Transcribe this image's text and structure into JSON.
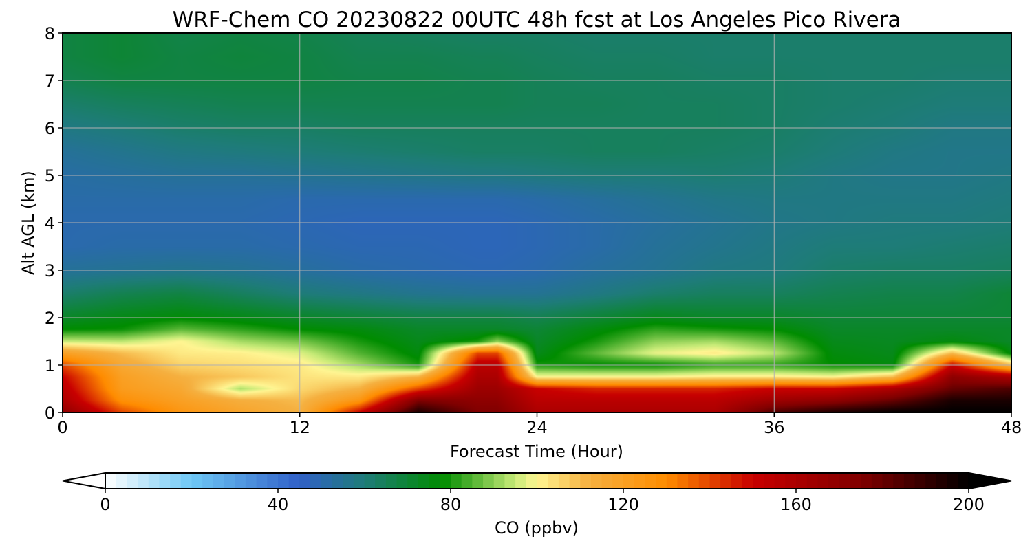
{
  "chart_data": {
    "type": "heatmap",
    "title": "WRF-Chem CO  20230822 00UTC 48h fcst at Los Angeles Pico Rivera",
    "xlabel": "Forecast Time (Hour)",
    "ylabel": "Alt AGL (km)",
    "xlim": [
      0,
      48
    ],
    "ylim": [
      0,
      8
    ],
    "x_ticks": [
      0,
      12,
      24,
      36,
      48
    ],
    "y_ticks": [
      0,
      1,
      2,
      3,
      4,
      5,
      6,
      7,
      8
    ],
    "grid": true,
    "x": [
      0,
      3,
      6,
      9,
      12,
      15,
      18,
      21,
      22,
      24,
      27,
      30,
      33,
      36,
      39,
      42,
      45,
      48
    ],
    "y": [
      0,
      0.25,
      0.5,
      0.75,
      1,
      1.25,
      1.5,
      1.75,
      2,
      2.5,
      3,
      3.5,
      4,
      4.5,
      5,
      5.5,
      6,
      6.5,
      7,
      7.5,
      8
    ],
    "z_co_ppbv": [
      [
        170,
        140,
        125,
        118,
        112,
        150,
        195,
        175,
        175,
        160,
        160,
        160,
        160,
        185,
        195,
        200,
        200,
        200
      ],
      [
        160,
        128,
        120,
        113,
        110,
        125,
        175,
        170,
        170,
        155,
        155,
        155,
        155,
        165,
        170,
        180,
        195,
        195
      ],
      [
        155,
        122,
        116,
        93,
        105,
        112,
        140,
        165,
        165,
        150,
        145,
        145,
        145,
        150,
        150,
        160,
        180,
        185
      ],
      [
        150,
        120,
        112,
        108,
        103,
        102,
        112,
        160,
        160,
        100,
        100,
        100,
        102,
        102,
        100,
        110,
        170,
        160
      ],
      [
        140,
        116,
        106,
        104,
        102,
        92,
        80,
        155,
        155,
        80,
        78,
        78,
        82,
        82,
        78,
        76,
        150,
        110
      ],
      [
        120,
        110,
        102,
        101,
        97,
        85,
        76,
        140,
        140,
        74,
        86,
        98,
        102,
        94,
        76,
        74,
        110,
        76
      ],
      [
        95,
        94,
        100,
        92,
        88,
        80,
        74,
        80,
        90,
        72,
        80,
        90,
        92,
        86,
        74,
        73,
        76,
        72
      ],
      [
        78,
        79,
        86,
        82,
        78,
        76,
        72,
        72,
        72,
        70,
        76,
        82,
        80,
        78,
        72,
        72,
        72,
        72
      ],
      [
        72,
        75,
        77,
        75,
        72,
        70,
        68,
        68,
        68,
        66,
        70,
        74,
        72,
        72,
        70,
        70,
        70,
        70
      ],
      [
        62,
        66,
        68,
        64,
        60,
        58,
        56,
        55,
        55,
        55,
        58,
        62,
        64,
        64,
        66,
        67,
        67,
        70
      ],
      [
        54,
        55,
        56,
        55,
        53,
        51,
        50,
        49,
        49,
        50,
        53,
        55,
        58,
        59,
        62,
        63,
        63,
        64
      ],
      [
        50,
        51,
        51,
        51,
        50,
        49,
        49,
        48,
        48,
        49,
        51,
        54,
        56,
        58,
        60,
        60,
        61,
        62
      ],
      [
        50,
        50,
        50,
        50,
        49,
        48,
        48,
        48,
        48,
        49,
        51,
        53,
        55,
        57,
        58,
        59,
        59,
        60
      ],
      [
        51,
        51,
        51,
        51,
        50,
        50,
        50,
        50,
        50,
        51,
        53,
        55,
        57,
        58,
        58,
        58,
        58,
        59
      ],
      [
        52,
        53,
        54,
        54,
        55,
        56,
        57,
        58,
        58,
        59,
        60,
        60,
        61,
        60,
        58,
        57,
        57,
        58
      ],
      [
        54,
        56,
        58,
        59,
        60,
        61,
        62,
        63,
        63,
        63,
        64,
        64,
        63,
        62,
        60,
        58,
        57,
        57
      ],
      [
        58,
        60,
        62,
        63,
        63,
        64,
        64,
        64,
        64,
        64,
        64,
        64,
        64,
        63,
        61,
        60,
        58,
        58
      ],
      [
        62,
        64,
        65,
        66,
        66,
        66,
        66,
        66,
        66,
        65,
        65,
        64,
        64,
        63,
        62,
        61,
        60,
        60
      ],
      [
        66,
        68,
        68,
        68,
        68,
        67,
        67,
        66,
        66,
        65,
        64,
        64,
        63,
        63,
        62,
        62,
        61,
        61
      ],
      [
        68,
        70,
        68,
        69,
        68,
        66,
        66,
        65,
        65,
        64,
        63,
        63,
        62,
        62,
        62,
        62,
        62,
        62
      ],
      [
        68,
        70,
        67,
        68,
        67,
        65,
        64,
        63,
        63,
        63,
        62,
        62,
        62,
        62,
        62,
        62,
        62,
        62
      ]
    ],
    "colorbar": {
      "label": "CO  (ppbv)",
      "min": 0,
      "max": 200,
      "ticks": [
        0,
        40,
        80,
        120,
        160,
        200
      ],
      "extend": "both",
      "stops": [
        {
          "v": 0,
          "c": "#ffffff"
        },
        {
          "v": 20,
          "c": "#6ec8f5"
        },
        {
          "v": 45,
          "c": "#3060c8"
        },
        {
          "v": 60,
          "c": "#1e7c78"
        },
        {
          "v": 78,
          "c": "#008c00"
        },
        {
          "v": 95,
          "c": "#c8eb78"
        },
        {
          "v": 100,
          "c": "#fff592"
        },
        {
          "v": 112,
          "c": "#f5b040"
        },
        {
          "v": 130,
          "c": "#ff8c00"
        },
        {
          "v": 150,
          "c": "#c80000"
        },
        {
          "v": 175,
          "c": "#800000"
        },
        {
          "v": 200,
          "c": "#000000"
        }
      ]
    }
  }
}
